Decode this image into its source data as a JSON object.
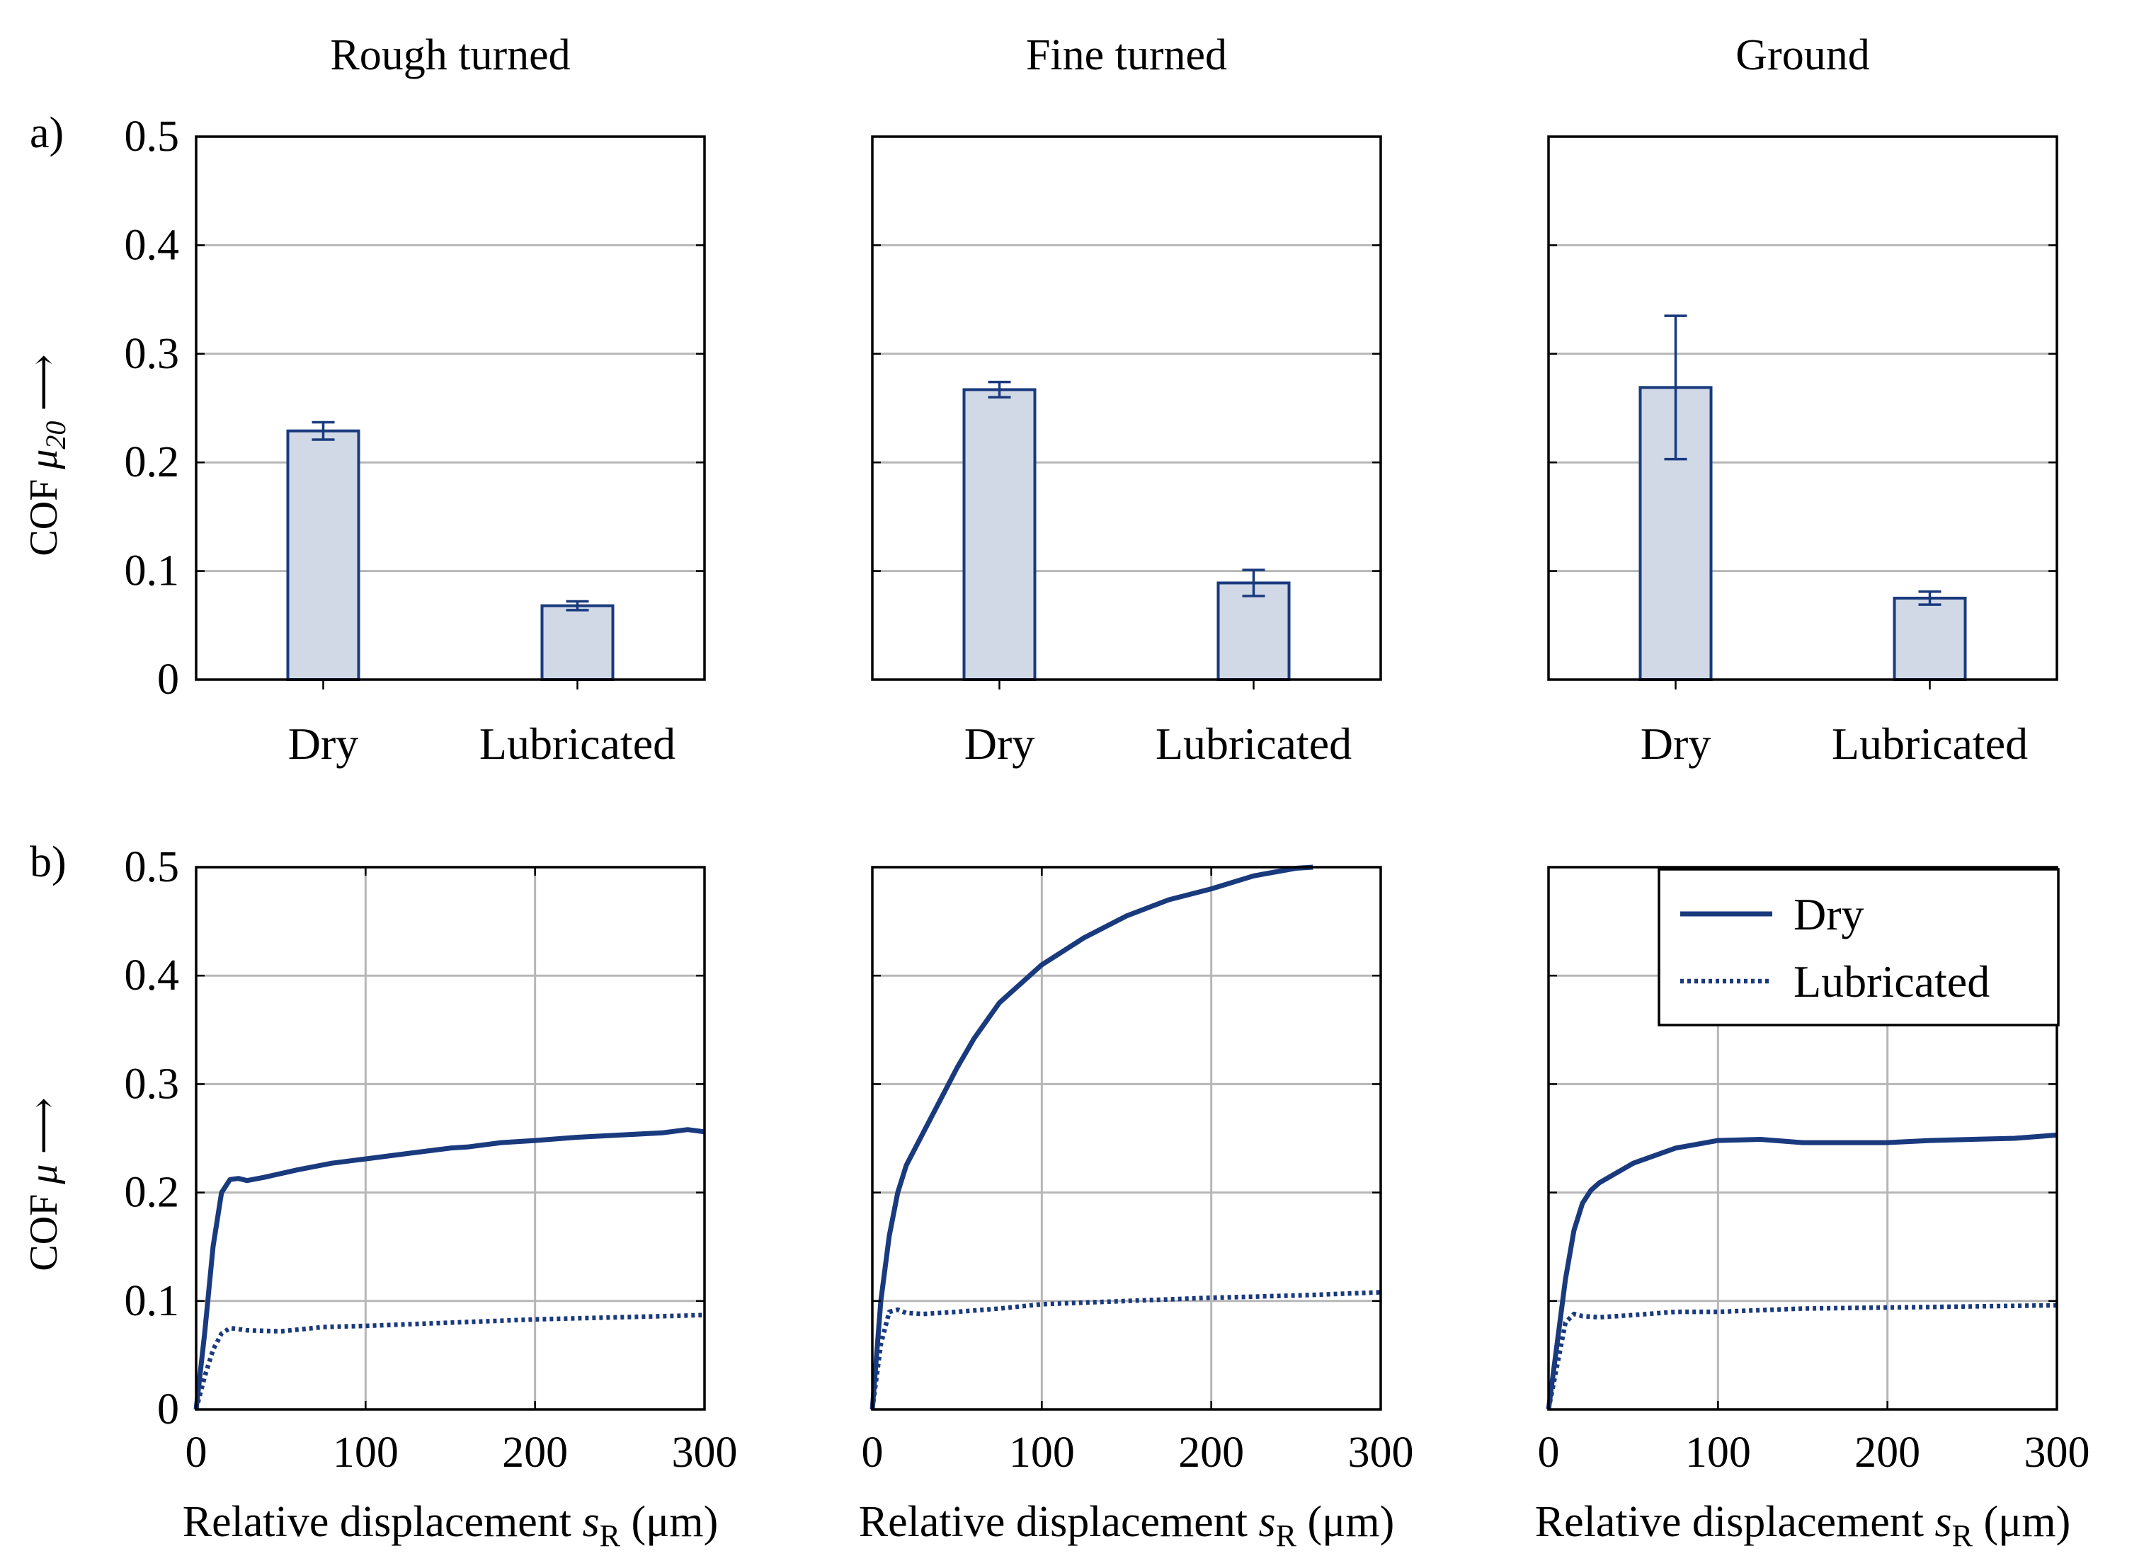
{
  "figure": {
    "row_labels": [
      "a)",
      "b)"
    ],
    "ylabel_a_prefix": "COF ",
    "ylabel_a_symbol": "μ",
    "ylabel_a_sub": "20",
    "ylabel_a_arrow": " ⟶",
    "ylabel_b_prefix": "COF ",
    "ylabel_b_symbol": "μ",
    "ylabel_b_arrow": " ⟶",
    "xlabel_prefix": "Relative displacement ",
    "xlabel_symbol": "s",
    "xlabel_sub": "R",
    "xlabel_suffix": " (μm)",
    "colors": {
      "line": "#1a3a7e",
      "bar_fill": "#d1d9e6",
      "grid": "#b7b7b7"
    }
  },
  "chart_data": [
    {
      "type": "bar",
      "title": "Rough turned",
      "categories": [
        "Dry",
        "Lubricated"
      ],
      "values": [
        0.229,
        0.068
      ],
      "errors": [
        0.008,
        0.004
      ],
      "ylim": [
        0,
        0.5
      ],
      "yticks": [
        "0",
        "0.1",
        "0.2",
        "0.3",
        "0.4",
        "0.5"
      ],
      "grid": "horizontal"
    },
    {
      "type": "bar",
      "title": "Fine turned",
      "categories": [
        "Dry",
        "Lubricated"
      ],
      "values": [
        0.267,
        0.089
      ],
      "errors": [
        0.007,
        0.012
      ],
      "ylim": [
        0,
        0.5
      ],
      "grid": "horizontal"
    },
    {
      "type": "bar",
      "title": "Ground",
      "categories": [
        "Dry",
        "Lubricated"
      ],
      "values": [
        0.269,
        0.075
      ],
      "errors": [
        0.066,
        0.006
      ],
      "ylim": [
        0,
        0.5
      ],
      "grid": "horizontal"
    },
    {
      "type": "line",
      "xlim": [
        0,
        300
      ],
      "ylim": [
        0,
        0.5
      ],
      "xticks": [
        "0",
        "100",
        "200",
        "300"
      ],
      "yticks": [
        "0",
        "0.1",
        "0.2",
        "0.3",
        "0.4",
        "0.5"
      ],
      "grid": "both",
      "series": [
        {
          "name": "Dry",
          "style": "solid",
          "x": [
            0,
            5,
            10,
            15,
            20,
            25,
            30,
            40,
            60,
            80,
            100,
            125,
            150,
            160,
            180,
            200,
            225,
            250,
            275,
            290,
            300
          ],
          "y": [
            0,
            0.07,
            0.15,
            0.2,
            0.212,
            0.213,
            0.211,
            0.214,
            0.221,
            0.227,
            0.231,
            0.236,
            0.241,
            0.242,
            0.246,
            0.248,
            0.251,
            0.253,
            0.255,
            0.258,
            0.256
          ]
        },
        {
          "name": "Lubricated",
          "style": "dotted",
          "x": [
            0,
            5,
            10,
            15,
            20,
            30,
            50,
            75,
            100,
            150,
            200,
            250,
            300
          ],
          "y": [
            0,
            0.03,
            0.055,
            0.07,
            0.075,
            0.073,
            0.072,
            0.076,
            0.077,
            0.08,
            0.083,
            0.085,
            0.087
          ]
        }
      ]
    },
    {
      "type": "line",
      "xlim": [
        0,
        300
      ],
      "ylim": [
        0,
        0.5
      ],
      "xticks": [
        "0",
        "100",
        "200",
        "300"
      ],
      "grid": "both",
      "series": [
        {
          "name": "Dry",
          "style": "solid",
          "x": [
            0,
            5,
            10,
            15,
            20,
            30,
            40,
            50,
            60,
            75,
            100,
            125,
            150,
            175,
            200,
            225,
            250,
            260
          ],
          "y": [
            0,
            0.1,
            0.16,
            0.2,
            0.225,
            0.255,
            0.285,
            0.315,
            0.342,
            0.375,
            0.41,
            0.435,
            0.455,
            0.47,
            0.48,
            0.492,
            0.499,
            0.5
          ]
        },
        {
          "name": "Lubricated",
          "style": "dotted",
          "x": [
            0,
            5,
            10,
            15,
            20,
            30,
            50,
            75,
            100,
            150,
            200,
            250,
            300
          ],
          "y": [
            0,
            0.06,
            0.09,
            0.092,
            0.089,
            0.088,
            0.09,
            0.093,
            0.097,
            0.1,
            0.103,
            0.105,
            0.108
          ]
        }
      ]
    },
    {
      "type": "line",
      "xlim": [
        0,
        300
      ],
      "ylim": [
        0,
        0.5
      ],
      "xticks": [
        "0",
        "100",
        "200",
        "300"
      ],
      "grid": "both",
      "legend": {
        "position": "top-right",
        "labels": [
          "Dry",
          "Lubricated"
        ]
      },
      "series": [
        {
          "name": "Dry",
          "style": "solid",
          "x": [
            0,
            5,
            10,
            15,
            20,
            25,
            30,
            40,
            50,
            75,
            100,
            125,
            150,
            175,
            200,
            225,
            250,
            275,
            300
          ],
          "y": [
            0,
            0.06,
            0.12,
            0.165,
            0.19,
            0.202,
            0.209,
            0.218,
            0.227,
            0.241,
            0.248,
            0.249,
            0.246,
            0.246,
            0.246,
            0.248,
            0.249,
            0.25,
            0.253
          ]
        },
        {
          "name": "Lubricated",
          "style": "dotted",
          "x": [
            0,
            5,
            10,
            15,
            20,
            30,
            50,
            75,
            100,
            150,
            200,
            250,
            300
          ],
          "y": [
            0,
            0.04,
            0.08,
            0.088,
            0.086,
            0.085,
            0.087,
            0.09,
            0.09,
            0.093,
            0.094,
            0.095,
            0.096
          ]
        }
      ]
    }
  ]
}
